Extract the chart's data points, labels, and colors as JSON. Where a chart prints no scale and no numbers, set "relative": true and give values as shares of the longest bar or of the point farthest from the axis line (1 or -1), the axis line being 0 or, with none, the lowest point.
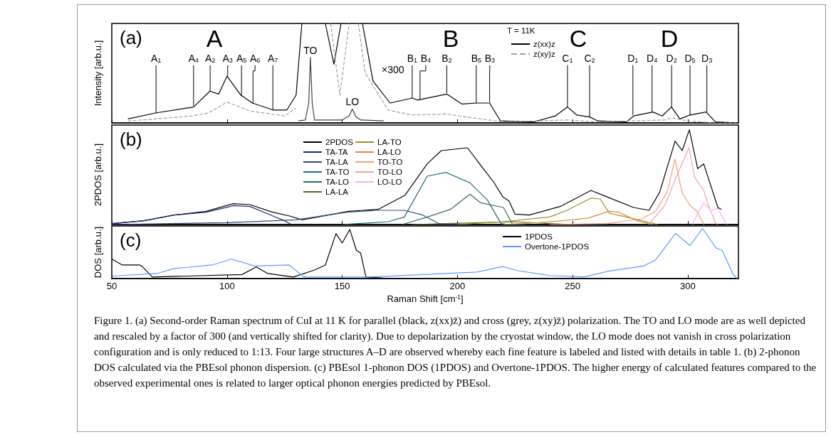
{
  "chart_data": [
    {
      "type": "line",
      "title": "(a)",
      "ylabel": "Intensity [arb.u.]",
      "relative": true,
      "xlim": [
        50,
        322
      ],
      "xticks": [
        50,
        100,
        150,
        200,
        250,
        300
      ],
      "tick_labels": false,
      "legend": "top",
      "marker": "none",
      "series": [
        {
          "name": "z(xx)z",
          "color": "#000000",
          "x": [
            57,
            69,
            85.5,
            92.6,
            96.4,
            100,
            106,
            111,
            120,
            126,
            130,
            132.5,
            137,
            142.7,
            146.4,
            149.5,
            154,
            158.8,
            163.4,
            170.8,
            180.4,
            182.6,
            195.5,
            202,
            208.5,
            214,
            218.7,
            233,
            242.5,
            247.8,
            251.8,
            257.4,
            261,
            273.4,
            276.5,
            284.9,
            288.9,
            292.9,
            296.6,
            301,
            308,
            312,
            322
          ],
          "values": [
            0.04,
            0.1,
            0.16,
            0.32,
            0.29,
            0.47,
            0.28,
            0.2,
            0.13,
            0.13,
            0.28,
            1,
            null,
            1,
            0.59,
            1,
            null,
            1,
            0.42,
            0.2,
            0.25,
            0.23,
            0.29,
            0.19,
            0.2,
            0.2,
            0.02,
            0.01,
            0.07,
            0.16,
            0.08,
            0.06,
            0.02,
            0.01,
            0.07,
            0.11,
            0.07,
            0.16,
            0.04,
            0.08,
            0.11,
            0.01,
            0
          ]
        },
        {
          "name": "z(xy)z",
          "color": "#a0a0a0",
          "line_style": "dashed",
          "x": [
            57,
            69,
            85,
            92,
            100,
            110,
            125,
            130,
            135,
            145,
            149,
            153,
            155,
            157,
            160,
            170,
            180,
            195,
            210,
            220,
            248,
            260,
            290,
            293,
            300,
            312,
            322
          ],
          "values": [
            0.02,
            0.04,
            0.07,
            0.1,
            0.21,
            0.12,
            0.07,
            0.15,
            null,
            1,
            0.28,
            1,
            null,
            1,
            0.5,
            0.13,
            0.08,
            0.09,
            0.04,
            0.01,
            0.03,
            0.01,
            0.03,
            0.05,
            0.02,
            0,
            0
          ]
        },
        {
          "color": "#404040",
          "x": [
            131,
            134,
            135.5,
            136.2,
            137,
            138,
            150,
            153,
            154.4,
            156,
            158,
            168
          ],
          "values": [
            0.02,
            0.03,
            0.2,
            0.66,
            0.2,
            0.03,
            0.03,
            0.07,
            0.14,
            0.06,
            0.03,
            0.02
          ]
        }
      ],
      "annotations": [
        "T = 11K",
        "A",
        "B",
        "C",
        "D",
        "×300",
        {
          "text": "TO",
          "x": 136.2,
          "y": 0.66
        },
        {
          "text": "LO",
          "x": 154.4,
          "y": 0.14
        },
        {
          "text": "A$_{1}$",
          "x": 69.2,
          "y": 0.1
        },
        {
          "text": "A$_{4}$",
          "x": 85.5,
          "y": 0.17
        },
        {
          "text": "A$_{2}$",
          "x": 92.7,
          "y": 0.32
        },
        {
          "text": "A$_{3}$",
          "x": 100.3,
          "y": 0.47
        },
        {
          "text": "A$_{5}$",
          "x": 106.3,
          "y": 0.27
        },
        {
          "text": "A$_{6}$",
          "x": 111.3,
          "y": 0.2
        },
        {
          "text": "A$_{7}$",
          "x": 119.9,
          "y": 0.13
        },
        {
          "text": "B$_{1}$",
          "x": 180.4,
          "y": 0.25
        },
        {
          "text": "B$_{4}$",
          "x": 183.8,
          "y": 0.24
        },
        {
          "text": "B$_{2}$",
          "x": 195.4,
          "y": 0.3
        },
        {
          "text": "B$_{5}$",
          "x": 208.2,
          "y": 0.2
        },
        {
          "text": "B$_{3}$",
          "x": 214,
          "y": 0.21
        },
        {
          "text": "C$_{1}$",
          "x": 247.8,
          "y": 0.16
        },
        {
          "text": "C$_{2}$",
          "x": 257.4,
          "y": 0.06
        },
        {
          "text": "D$_{1}$",
          "x": 276.2,
          "y": 0.08
        },
        {
          "text": "D$_{4}$",
          "x": 284.5,
          "y": 0.11
        },
        {
          "text": "D$_{2}$",
          "x": 293,
          "y": 0.16
        },
        {
          "text": "D$_{5}$",
          "x": 301,
          "y": 0.08
        },
        {
          "text": "D$_{3}$",
          "x": 308.3,
          "y": 0.11
        }
      ]
    },
    {
      "type": "line",
      "title": "(b)",
      "ylabel": "2PDOS [arb.u.]",
      "relative": true,
      "xlim": [
        50,
        322
      ],
      "xticks": [
        50,
        100,
        150,
        200,
        250,
        300
      ],
      "tick_labels": false,
      "legend": "top",
      "marker": "none",
      "series": [
        {
          "name": "2PDOS",
          "color": "#000000",
          "x": [
            50.5,
            64,
            77,
            91,
            102.7,
            110,
            119.8,
            127.2,
            132.6,
            152.8,
            165.6,
            177.3,
            186.9,
            193,
            204.4,
            210.6,
            215.7,
            219.8,
            222.4,
            225,
            231.2,
            244.6,
            258,
            265.2,
            276.5,
            283.2,
            287.8,
            294.5,
            297.6,
            300.7,
            304.3,
            306.9,
            313.1,
            314.6
          ],
          "values": [
            0.01,
            0.04,
            0.1,
            0.14,
            0.22,
            0.21,
            0.13,
            0.09,
            0.05,
            0.14,
            0.16,
            0.31,
            0.64,
            0.78,
            0.81,
            0.61,
            0.45,
            0.29,
            0.25,
            0.11,
            0.1,
            0.19,
            0.36,
            0.29,
            0.18,
            0.15,
            0.34,
            0.88,
            0.78,
            1,
            0.59,
            0.64,
            0.18,
            0.16
          ]
        },
        {
          "name": "TA-TA",
          "color": "#1f2a7a",
          "x": [
            50,
            64,
            77,
            91,
            103,
            110,
            120,
            125,
            128
          ],
          "values": [
            0.01,
            0.04,
            0.1,
            0.13,
            0.2,
            0.19,
            0.09,
            0.04,
            0
          ]
        },
        {
          "name": "TA-LA",
          "color": "#2e4a7e",
          "x": [
            50,
            100,
            130,
            152,
            165,
            177,
            185,
            192,
            200
          ],
          "values": [
            0,
            0.02,
            0.05,
            0.13,
            0.15,
            0.15,
            0.1,
            0.01,
            0
          ]
        },
        {
          "name": "TA-TO",
          "color": "#1f6a78",
          "x": [
            150,
            170,
            177,
            186.9,
            195,
            205.5,
            213,
            219,
            222
          ],
          "values": [
            0,
            0.03,
            0.08,
            0.51,
            0.55,
            0.44,
            0.26,
            0.01,
            0
          ]
        },
        {
          "name": "TA-LO",
          "color": "#2e6e5a",
          "x": [
            176,
            187,
            197,
            205.5,
            210,
            220,
            224,
            230
          ],
          "values": [
            0,
            0.08,
            0.16,
            0.32,
            0.23,
            0.18,
            0,
            0
          ]
        },
        {
          "name": "LA-LA",
          "color": "#5a6a1e",
          "x": [
            180,
            210,
            225,
            240,
            250
          ],
          "values": [
            0,
            0.02,
            0.03,
            0.01,
            0
          ]
        },
        {
          "name": "LA-TO",
          "color": "#a08c1e",
          "x": [
            200,
            220,
            240,
            247.6,
            258,
            262,
            266,
            275,
            287
          ],
          "values": [
            0,
            0.03,
            0.08,
            0.15,
            0.28,
            0.27,
            0.12,
            0.07,
            0
          ]
        },
        {
          "name": "LA-LO",
          "color": "#e08a3a",
          "x": [
            220,
            235,
            250,
            257,
            265.9,
            270,
            278,
            285
          ],
          "values": [
            0,
            0.02,
            0.05,
            0.07,
            0.14,
            0.13,
            0.04,
            0
          ]
        },
        {
          "name": "TO-TO",
          "color": "#f5a080",
          "x": [
            240,
            265,
            280,
            286,
            291,
            294.5,
            297.5,
            301,
            304,
            307
          ],
          "values": [
            0,
            0.01,
            0.06,
            0.14,
            0.34,
            0.69,
            0.34,
            0.2,
            0.14,
            0
          ]
        },
        {
          "name": "TO-LO",
          "color": "#f4a0a8",
          "x": [
            283,
            290,
            295,
            300.5,
            303,
            306.9,
            309,
            312,
            313
          ],
          "values": [
            0,
            0.2,
            0.5,
            0.81,
            0.5,
            0.36,
            0.2,
            0.02,
            0
          ]
        },
        {
          "name": "LO-LO",
          "color": "#f4b0f0",
          "x": [
            302,
            305,
            306.9,
            310,
            313,
            314.6,
            317
          ],
          "values": [
            0,
            0.15,
            0.23,
            0.15,
            0.17,
            0.1,
            0
          ]
        }
      ]
    },
    {
      "type": "line",
      "title": "(c)",
      "ylabel": "DOS [arb.u.]",
      "xlabel": "Raman Shift [cm$^{-1}$]",
      "relative": true,
      "xlim": [
        50,
        322
      ],
      "xticks": [
        50,
        100,
        150,
        200,
        250,
        300
      ],
      "tick_labels": "x",
      "legend": "top",
      "marker": "none",
      "series": [
        {
          "name": "1PDOS",
          "color": "#000000",
          "x": [
            50,
            54.6,
            62,
            63,
            67.6,
            106.5,
            112.7,
            117.7,
            128.8,
            138,
            142.7,
            147.3,
            150,
            153.3,
            156.2,
            158,
            160.3,
            167.7
          ],
          "values": [
            0.39,
            0.27,
            0.27,
            0.25,
            0.03,
            0.08,
            0.23,
            0.1,
            0.03,
            0.17,
            0.27,
            0.9,
            0.71,
            0.98,
            0.56,
            0.51,
            0.03,
            0.01
          ]
        },
        {
          "name": "Overtone-1PDOS",
          "color": "#5b9bff",
          "x": [
            50,
            69.5,
            77,
            93.6,
            102,
            112,
            127,
            133.4,
            162,
            208.5,
            219.6,
            226,
            240,
            254.9,
            266,
            280.8,
            286,
            294.7,
            301,
            306.4,
            312.3,
            315,
            319.7,
            321.5
          ],
          "values": [
            0.05,
            0.1,
            0.2,
            0.27,
            0.39,
            0.25,
            0.27,
            0.03,
            0.03,
            0.13,
            0.24,
            0.16,
            0.06,
            0.03,
            0.15,
            0.25,
            0.37,
            0.9,
            0.66,
            1,
            0.61,
            0.56,
            0.08,
            0
          ]
        }
      ],
      "annotations": [
        "Figure 1. (a) Second-order Raman spectrum of CuI at 11 K for parallel (black, z(xx)z̄) and cross (grey, z(xy)z̄) polarization. The TO and LO mode are as well depicted and rescaled by a factor of 300 (and vertically shifted for clarity). Due to depolarization by the cryostat window, the LO mode does not vanish in cross polarization configuration and is only reduced to 1:13. Four large structures A–D are observed whereby each fine feature is labeled and listed with details in table 1. (b) 2-phonon DOS calculated via the PBEsol phonon dispersion. (c) PBEsol 1-phonon DOS (1PDOS) and Overtone-1PDOS. The higher energy of calculated features compared to the observed experimental ones is related to larger optical phonon energies predicted by PBEsol."
      ]
    }
  ]
}
